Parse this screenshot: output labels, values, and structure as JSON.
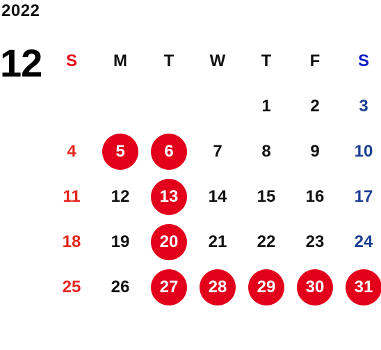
{
  "calendar": {
    "year": "2022",
    "month": "12",
    "weekdays": [
      "S",
      "M",
      "T",
      "W",
      "T",
      "F",
      "S"
    ],
    "weeks": [
      [
        "",
        "",
        "",
        "",
        "1",
        "2",
        "3"
      ],
      [
        "4",
        "5",
        "6",
        "7",
        "8",
        "9",
        "10"
      ],
      [
        "11",
        "12",
        "13",
        "14",
        "15",
        "16",
        "17"
      ],
      [
        "18",
        "19",
        "20",
        "21",
        "22",
        "23",
        "24"
      ],
      [
        "25",
        "26",
        "27",
        "28",
        "29",
        "30",
        "31"
      ]
    ],
    "highlighted_days": [
      "5",
      "6",
      "13",
      "20",
      "27",
      "28",
      "29",
      "30",
      "31"
    ],
    "colors": {
      "sunday": "#e5261f",
      "saturday": "#1c3f91",
      "highlight": "#e3001b",
      "weekday": "#111111"
    }
  }
}
